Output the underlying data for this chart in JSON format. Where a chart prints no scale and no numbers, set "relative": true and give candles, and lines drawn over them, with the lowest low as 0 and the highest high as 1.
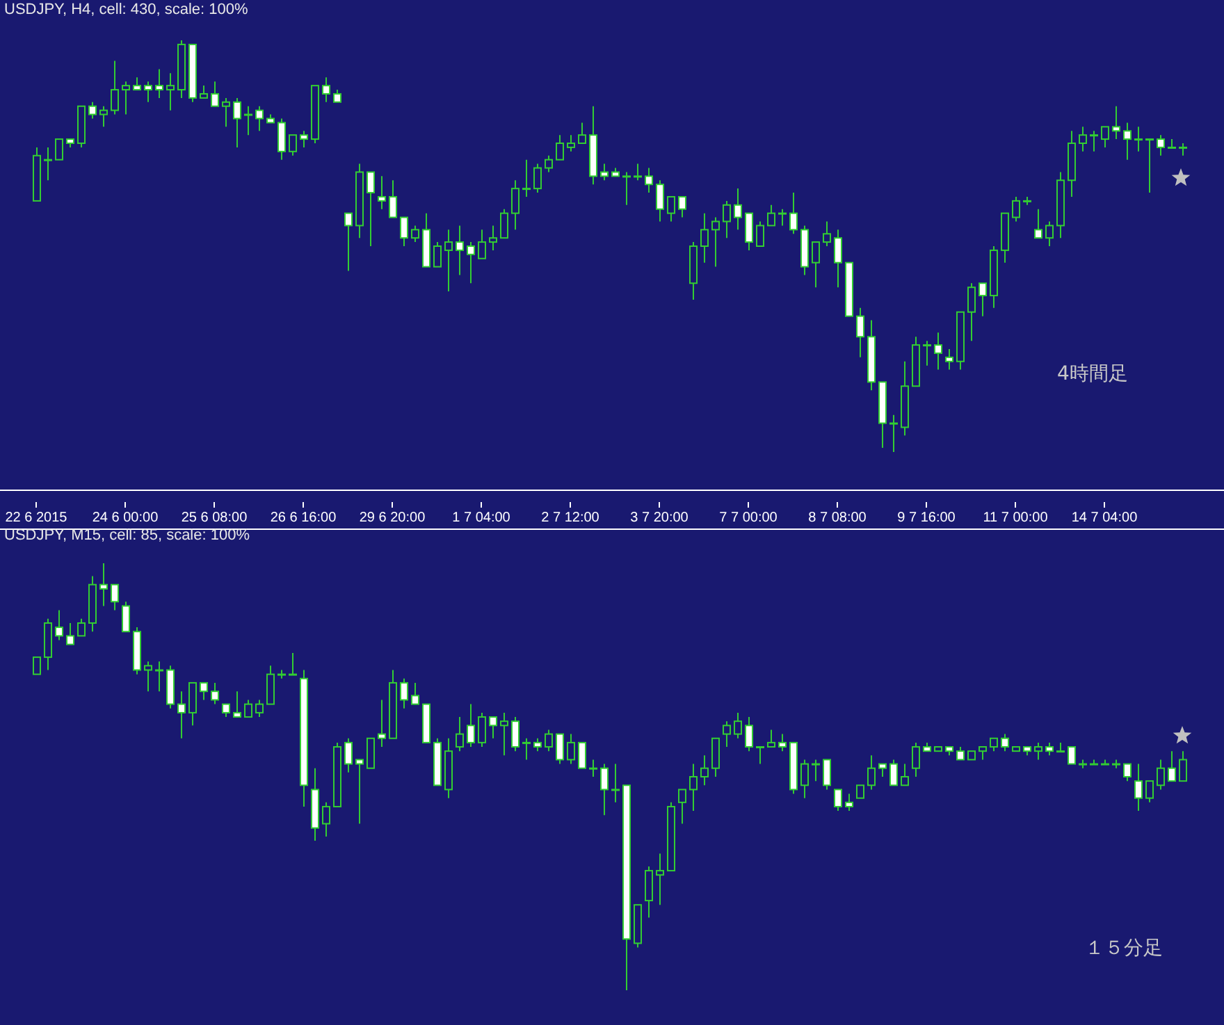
{
  "chart_data": [
    {
      "type": "candlestick",
      "title": "USDJPY, H4, cell: 430, scale: 100%",
      "relative": true,
      "color": "#32cd32",
      "annotations": [
        "4時間足"
      ],
      "categories": [
        "22 6 2015",
        null,
        null,
        null,
        null,
        null,
        null,
        null,
        "24 6 00:00",
        null,
        null,
        null,
        null,
        null,
        null,
        null,
        "25 6 08:00",
        null,
        null,
        null,
        null,
        null,
        null,
        null,
        "26 6 16:00",
        null,
        null,
        null,
        null,
        null,
        null,
        null,
        "29 6 20:00",
        null,
        null,
        null,
        null,
        null,
        null,
        null,
        "1 7 04:00",
        null,
        null,
        null,
        null,
        null,
        null,
        null,
        "2 7 12:00",
        null,
        null,
        null,
        null,
        null,
        null,
        null,
        "3 7 20:00",
        null,
        null,
        null,
        null,
        null,
        null,
        null,
        "7 7 00:00",
        null,
        null,
        null,
        null,
        null,
        null,
        null,
        "8 7 08:00",
        null,
        null,
        null,
        null,
        null,
        null,
        null,
        "9 7 16:00",
        null,
        null,
        null,
        null,
        null,
        null,
        null,
        "11 7 00:00",
        null,
        null,
        null,
        null,
        null,
        null,
        null,
        "14 7 04:00",
        null,
        null,
        null,
        null,
        null,
        null,
        null
      ],
      "ohlc": [
        [
          0.61,
          0.74,
          0.61,
          0.72
        ],
        [
          0.71,
          0.74,
          0.66,
          0.71
        ],
        [
          0.71,
          0.76,
          0.71,
          0.76
        ],
        [
          0.76,
          0.76,
          0.74,
          0.75
        ],
        [
          0.75,
          0.84,
          0.74,
          0.84
        ],
        [
          0.84,
          0.85,
          0.81,
          0.82
        ],
        [
          0.82,
          0.84,
          0.79,
          0.83
        ],
        [
          0.83,
          0.95,
          0.82,
          0.88
        ],
        [
          0.88,
          0.9,
          0.82,
          0.89
        ],
        [
          0.89,
          0.91,
          0.88,
          0.88
        ],
        [
          0.89,
          0.9,
          0.85,
          0.88
        ],
        [
          0.89,
          0.93,
          0.86,
          0.88
        ],
        [
          0.88,
          0.92,
          0.83,
          0.89
        ],
        [
          0.88,
          1,
          0.86,
          0.99
        ],
        [
          0.99,
          0.99,
          0.85,
          0.86
        ],
        [
          0.86,
          0.89,
          0.86,
          0.87
        ],
        [
          0.87,
          0.9,
          0.84,
          0.84
        ],
        [
          0.84,
          0.86,
          0.79,
          0.85
        ],
        [
          0.85,
          0.86,
          0.74,
          0.81
        ],
        [
          0.82,
          0.84,
          0.77,
          0.82
        ],
        [
          0.83,
          0.84,
          0.78,
          0.81
        ],
        [
          0.81,
          0.82,
          0.8,
          0.8
        ],
        [
          0.8,
          0.81,
          0.71,
          0.73
        ],
        [
          0.73,
          0.77,
          0.72,
          0.77
        ],
        [
          0.77,
          0.78,
          0.74,
          0.76
        ],
        [
          0.76,
          0.89,
          0.75,
          0.89
        ],
        [
          0.89,
          0.91,
          0.85,
          0.87
        ],
        [
          0.87,
          0.88,
          0.85,
          0.85
        ],
        [
          0.58,
          0.58,
          0.44,
          0.55
        ],
        [
          0.55,
          0.7,
          0.52,
          0.68
        ],
        [
          0.68,
          0.68,
          0.5,
          0.63
        ],
        [
          0.62,
          0.67,
          0.59,
          0.61
        ],
        [
          0.62,
          0.66,
          0.57,
          0.57
        ],
        [
          0.57,
          0.57,
          0.5,
          0.52
        ],
        [
          0.52,
          0.55,
          0.51,
          0.54
        ],
        [
          0.54,
          0.58,
          0.45,
          0.45
        ],
        [
          0.45,
          0.51,
          0.45,
          0.5
        ],
        [
          0.49,
          0.54,
          0.39,
          0.51
        ],
        [
          0.51,
          0.55,
          0.43,
          0.49
        ],
        [
          0.5,
          0.51,
          0.41,
          0.48
        ],
        [
          0.47,
          0.54,
          0.47,
          0.51
        ],
        [
          0.51,
          0.55,
          0.49,
          0.52
        ],
        [
          0.52,
          0.59,
          0.52,
          0.58
        ],
        [
          0.58,
          0.66,
          0.54,
          0.64
        ],
        [
          0.64,
          0.71,
          0.62,
          0.64
        ],
        [
          0.64,
          0.7,
          0.63,
          0.69
        ],
        [
          0.69,
          0.72,
          0.68,
          0.71
        ],
        [
          0.71,
          0.77,
          0.71,
          0.75
        ],
        [
          0.74,
          0.77,
          0.73,
          0.75
        ],
        [
          0.75,
          0.8,
          0.75,
          0.77
        ],
        [
          0.77,
          0.84,
          0.65,
          0.67
        ],
        [
          0.68,
          0.7,
          0.66,
          0.67
        ],
        [
          0.68,
          0.69,
          0.67,
          0.67
        ],
        [
          0.67,
          0.68,
          0.6,
          0.67
        ],
        [
          0.67,
          0.7,
          0.66,
          0.67
        ],
        [
          0.67,
          0.69,
          0.63,
          0.65
        ],
        [
          0.65,
          0.66,
          0.56,
          0.59
        ],
        [
          0.58,
          0.62,
          0.56,
          0.62
        ],
        [
          0.62,
          0.62,
          0.57,
          0.59
        ],
        [
          0.41,
          0.51,
          0.37,
          0.5
        ],
        [
          0.5,
          0.58,
          0.46,
          0.54
        ],
        [
          0.54,
          0.57,
          0.45,
          0.56
        ],
        [
          0.56,
          0.61,
          0.52,
          0.6
        ],
        [
          0.6,
          0.64,
          0.54,
          0.57
        ],
        [
          0.58,
          0.58,
          0.49,
          0.51
        ],
        [
          0.5,
          0.56,
          0.5,
          0.55
        ],
        [
          0.55,
          0.6,
          0.55,
          0.58
        ],
        [
          0.58,
          0.59,
          0.55,
          0.58
        ],
        [
          0.58,
          0.63,
          0.53,
          0.54
        ],
        [
          0.54,
          0.55,
          0.43,
          0.45
        ],
        [
          0.46,
          0.51,
          0.4,
          0.51
        ],
        [
          0.51,
          0.56,
          0.5,
          0.53
        ],
        [
          0.52,
          0.54,
          0.4,
          0.46
        ],
        [
          0.46,
          0.46,
          0.33,
          0.33
        ],
        [
          0.33,
          0.35,
          0.23,
          0.28
        ],
        [
          0.28,
          0.32,
          0.15,
          0.17
        ],
        [
          0.17,
          0.17,
          0.01,
          0.07
        ],
        [
          0.07,
          0.09,
          0,
          0.07
        ],
        [
          0.06,
          0.22,
          0.04,
          0.16
        ],
        [
          0.16,
          0.28,
          0.16,
          0.26
        ],
        [
          0.26,
          0.27,
          0.21,
          0.26
        ],
        [
          0.26,
          0.29,
          0.2,
          0.24
        ],
        [
          0.23,
          0.25,
          0.2,
          0.22
        ],
        [
          0.22,
          0.34,
          0.2,
          0.34
        ],
        [
          0.34,
          0.41,
          0.27,
          0.4
        ],
        [
          0.41,
          0.41,
          0.33,
          0.38
        ],
        [
          0.38,
          0.5,
          0.35,
          0.49
        ],
        [
          0.49,
          0.58,
          0.46,
          0.58
        ],
        [
          0.57,
          0.62,
          0.56,
          0.61
        ],
        [
          0.61,
          0.62,
          0.6,
          0.61
        ],
        [
          0.54,
          0.59,
          0.52,
          0.52
        ],
        [
          0.52,
          0.56,
          0.5,
          0.55
        ],
        [
          0.55,
          0.68,
          0.52,
          0.66
        ],
        [
          0.66,
          0.78,
          0.62,
          0.75
        ],
        [
          0.75,
          0.79,
          0.73,
          0.77
        ],
        [
          0.77,
          0.78,
          0.73,
          0.77
        ],
        [
          0.76,
          0.79,
          0.74,
          0.79
        ],
        [
          0.79,
          0.84,
          0.76,
          0.78
        ],
        [
          0.78,
          0.8,
          0.71,
          0.76
        ],
        [
          0.76,
          0.79,
          0.73,
          0.76
        ],
        [
          0.76,
          0.76,
          0.63,
          0.76
        ],
        [
          0.76,
          0.77,
          0.72,
          0.74
        ],
        [
          0.74,
          0.76,
          0.74,
          0.74
        ],
        [
          0.74,
          0.75,
          0.72,
          0.74
        ]
      ]
    },
    {
      "type": "candlestick",
      "title": "USDJPY, M15, cell: 85, scale: 100%",
      "relative": true,
      "color": "#32cd32",
      "annotations": [
        "１５分足"
      ],
      "categories": [
        null,
        null,
        null,
        null,
        null,
        null,
        null,
        null,
        null,
        null,
        null,
        null,
        null,
        null,
        null,
        null,
        null,
        null,
        null,
        null,
        null,
        null,
        null,
        null,
        null,
        null,
        null,
        null,
        null,
        null,
        null,
        null,
        null,
        null,
        null,
        null,
        null,
        null,
        null,
        null,
        null,
        null,
        null,
        null,
        null,
        null,
        null,
        null,
        null,
        null,
        null,
        null,
        null,
        null,
        null,
        null,
        null,
        null,
        null,
        null,
        null,
        null,
        null,
        null,
        null,
        null,
        null,
        null,
        null,
        null,
        null,
        null,
        null,
        null,
        null,
        null,
        null,
        null,
        null,
        null,
        null,
        null,
        null,
        null,
        null,
        null,
        null,
        null,
        null,
        null,
        null,
        null,
        null,
        null,
        null,
        null,
        null,
        null,
        null,
        null,
        null,
        null,
        null,
        null
      ],
      "ohlc": [
        [
          0.74,
          0.78,
          0.74,
          0.78
        ],
        [
          0.78,
          0.87,
          0.75,
          0.86
        ],
        [
          0.85,
          0.89,
          0.82,
          0.83
        ],
        [
          0.83,
          0.86,
          0.81,
          0.81
        ],
        [
          0.83,
          0.87,
          0.83,
          0.86
        ],
        [
          0.86,
          0.97,
          0.84,
          0.95
        ],
        [
          0.95,
          1,
          0.9,
          0.94
        ],
        [
          0.95,
          0.95,
          0.89,
          0.91
        ],
        [
          0.9,
          0.91,
          0.84,
          0.84
        ],
        [
          0.84,
          0.85,
          0.74,
          0.75
        ],
        [
          0.75,
          0.77,
          0.7,
          0.76
        ],
        [
          0.75,
          0.77,
          0.7,
          0.75
        ],
        [
          0.75,
          0.76,
          0.66,
          0.67
        ],
        [
          0.67,
          0.7,
          0.59,
          0.65
        ],
        [
          0.65,
          0.72,
          0.62,
          0.72
        ],
        [
          0.72,
          0.72,
          0.68,
          0.7
        ],
        [
          0.7,
          0.72,
          0.67,
          0.68
        ],
        [
          0.67,
          0.67,
          0.64,
          0.65
        ],
        [
          0.65,
          0.7,
          0.64,
          0.64
        ],
        [
          0.64,
          0.68,
          0.64,
          0.67
        ],
        [
          0.65,
          0.68,
          0.64,
          0.67
        ],
        [
          0.67,
          0.76,
          0.67,
          0.74
        ],
        [
          0.74,
          0.75,
          0.73,
          0.74
        ],
        [
          0.74,
          0.79,
          0.74,
          0.74
        ],
        [
          0.73,
          0.75,
          0.43,
          0.48
        ],
        [
          0.47,
          0.52,
          0.35,
          0.38
        ],
        [
          0.39,
          0.44,
          0.36,
          0.43
        ],
        [
          0.43,
          0.58,
          0.43,
          0.57
        ],
        [
          0.58,
          0.59,
          0.51,
          0.53
        ],
        [
          0.54,
          0.54,
          0.39,
          0.53
        ],
        [
          0.52,
          0.59,
          0.52,
          0.59
        ],
        [
          0.6,
          0.68,
          0.57,
          0.59
        ],
        [
          0.59,
          0.75,
          0.59,
          0.72
        ],
        [
          0.72,
          0.73,
          0.66,
          0.68
        ],
        [
          0.69,
          0.72,
          0.67,
          0.67
        ],
        [
          0.67,
          0.67,
          0.58,
          0.58
        ],
        [
          0.58,
          0.59,
          0.48,
          0.48
        ],
        [
          0.47,
          0.59,
          0.45,
          0.56
        ],
        [
          0.57,
          0.64,
          0.56,
          0.6
        ],
        [
          0.62,
          0.67,
          0.57,
          0.58
        ],
        [
          0.58,
          0.65,
          0.57,
          0.64
        ],
        [
          0.64,
          0.64,
          0.59,
          0.62
        ],
        [
          0.62,
          0.65,
          0.55,
          0.63
        ],
        [
          0.63,
          0.64,
          0.56,
          0.57
        ],
        [
          0.58,
          0.59,
          0.54,
          0.58
        ],
        [
          0.58,
          0.59,
          0.56,
          0.57
        ],
        [
          0.57,
          0.61,
          0.56,
          0.6
        ],
        [
          0.6,
          0.6,
          0.53,
          0.54
        ],
        [
          0.54,
          0.6,
          0.53,
          0.58
        ],
        [
          0.58,
          0.58,
          0.52,
          0.52
        ],
        [
          0.52,
          0.54,
          0.5,
          0.52
        ],
        [
          0.52,
          0.53,
          0.41,
          0.47
        ],
        [
          0.47,
          0.53,
          0.44,
          0.47
        ],
        [
          0.48,
          0.48,
          0,
          0.12
        ],
        [
          0.11,
          0.2,
          0.1,
          0.2
        ],
        [
          0.21,
          0.29,
          0.17,
          0.28
        ],
        [
          0.27,
          0.32,
          0.2,
          0.28
        ],
        [
          0.28,
          0.44,
          0.28,
          0.43
        ],
        [
          0.44,
          0.47,
          0.39,
          0.47
        ],
        [
          0.47,
          0.53,
          0.42,
          0.5
        ],
        [
          0.5,
          0.55,
          0.48,
          0.52
        ],
        [
          0.52,
          0.59,
          0.5,
          0.59
        ],
        [
          0.6,
          0.63,
          0.57,
          0.62
        ],
        [
          0.6,
          0.65,
          0.59,
          0.63
        ],
        [
          0.62,
          0.64,
          0.56,
          0.57
        ],
        [
          0.57,
          0.57,
          0.53,
          0.57
        ],
        [
          0.57,
          0.61,
          0.57,
          0.58
        ],
        [
          0.58,
          0.6,
          0.56,
          0.57
        ],
        [
          0.58,
          0.58,
          0.46,
          0.47
        ],
        [
          0.48,
          0.54,
          0.45,
          0.53
        ],
        [
          0.53,
          0.54,
          0.49,
          0.53
        ],
        [
          0.54,
          0.54,
          0.47,
          0.48
        ],
        [
          0.47,
          0.47,
          0.42,
          0.43
        ],
        [
          0.44,
          0.46,
          0.42,
          0.43
        ],
        [
          0.45,
          0.48,
          0.45,
          0.48
        ],
        [
          0.48,
          0.55,
          0.47,
          0.52
        ],
        [
          0.53,
          0.53,
          0.5,
          0.52
        ],
        [
          0.53,
          0.54,
          0.48,
          0.48
        ],
        [
          0.48,
          0.53,
          0.48,
          0.5
        ],
        [
          0.52,
          0.58,
          0.5,
          0.57
        ],
        [
          0.57,
          0.58,
          0.56,
          0.56
        ],
        [
          0.56,
          0.57,
          0.56,
          0.57
        ],
        [
          0.57,
          0.57,
          0.55,
          0.56
        ],
        [
          0.56,
          0.57,
          0.54,
          0.54
        ],
        [
          0.54,
          0.56,
          0.54,
          0.56
        ],
        [
          0.56,
          0.57,
          0.54,
          0.57
        ],
        [
          0.57,
          0.59,
          0.56,
          0.59
        ],
        [
          0.59,
          0.6,
          0.56,
          0.57
        ],
        [
          0.56,
          0.57,
          0.56,
          0.57
        ],
        [
          0.57,
          0.57,
          0.55,
          0.56
        ],
        [
          0.56,
          0.58,
          0.54,
          0.57
        ],
        [
          0.57,
          0.58,
          0.55,
          0.56
        ],
        [
          0.56,
          0.58,
          0.56,
          0.56
        ],
        [
          0.57,
          0.57,
          0.53,
          0.53
        ],
        [
          0.53,
          0.54,
          0.52,
          0.53
        ],
        [
          0.53,
          0.54,
          0.53,
          0.53
        ],
        [
          0.53,
          0.54,
          0.53,
          0.53
        ],
        [
          0.53,
          0.54,
          0.52,
          0.53
        ],
        [
          0.53,
          0.53,
          0.49,
          0.5
        ],
        [
          0.49,
          0.53,
          0.42,
          0.45
        ],
        [
          0.45,
          0.49,
          0.44,
          0.49
        ],
        [
          0.48,
          0.54,
          0.47,
          0.52
        ],
        [
          0.52,
          0.56,
          0.49,
          0.49
        ],
        [
          0.49,
          0.56,
          0.49,
          0.54
        ]
      ]
    }
  ]
}
